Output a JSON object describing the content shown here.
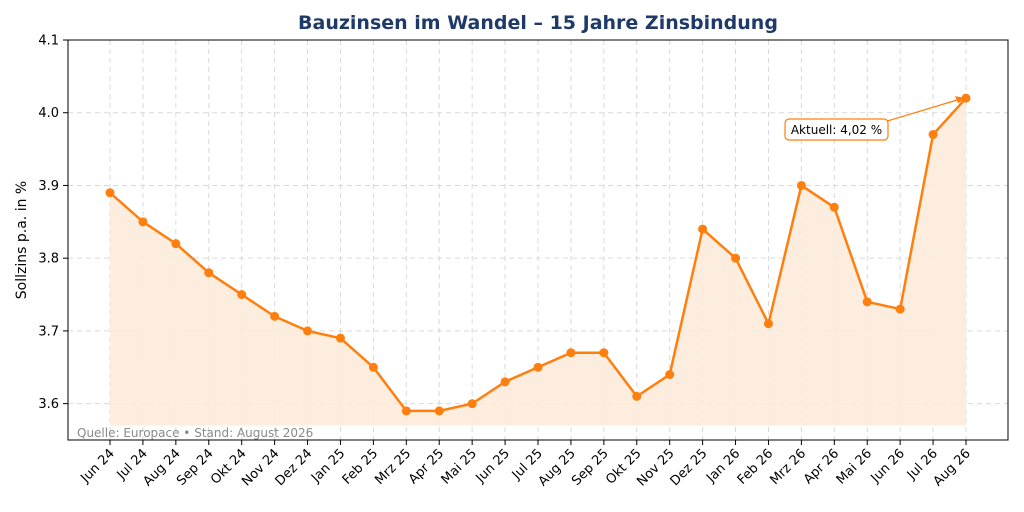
{
  "chart_data": {
    "type": "area",
    "title": "Bauzinsen im Wandel – 15 Jahre Zinsbindung",
    "xlabel": "",
    "ylabel": "Sollzins p.a. in %",
    "categories": [
      "Jun 24",
      "Jul 24",
      "Aug 24",
      "Sep 24",
      "Okt 24",
      "Nov 24",
      "Dez 24",
      "Jan 25",
      "Feb 25",
      "Mrz 25",
      "Apr 25",
      "Mai 25",
      "Jun 25",
      "Jul 25",
      "Aug 25",
      "Sep 25",
      "Okt 25",
      "Nov 25",
      "Dez 25",
      "Jan 26",
      "Feb 26",
      "Mrz 26",
      "Apr 26",
      "Mai 26",
      "Jun 26",
      "Jul 26",
      "Aug 26"
    ],
    "series": [
      {
        "values": [
          3.89,
          3.85,
          3.82,
          3.78,
          3.75,
          3.72,
          3.7,
          3.69,
          3.65,
          3.59,
          3.59,
          3.6,
          3.63,
          3.65,
          3.67,
          3.67,
          3.61,
          3.64,
          3.84,
          3.8,
          3.71,
          3.9,
          3.87,
          3.74,
          3.73,
          3.97,
          4.02
        ]
      }
    ],
    "ylim": [
      3.55,
      4.1
    ],
    "yticks": [
      3.6,
      3.7,
      3.8,
      3.9,
      4.0,
      4.1
    ],
    "grid": true,
    "annotation": {
      "text": "Aktuell: 4,02 %",
      "target_index": 26
    },
    "source_note": "Quelle: Europace • Stand: August 2026",
    "colors": {
      "line": "#ff7f0e",
      "fill": "#fdebdb",
      "title": "#1f3a68",
      "grid": "#d9d9d9",
      "source": "#8a8a8a"
    }
  }
}
